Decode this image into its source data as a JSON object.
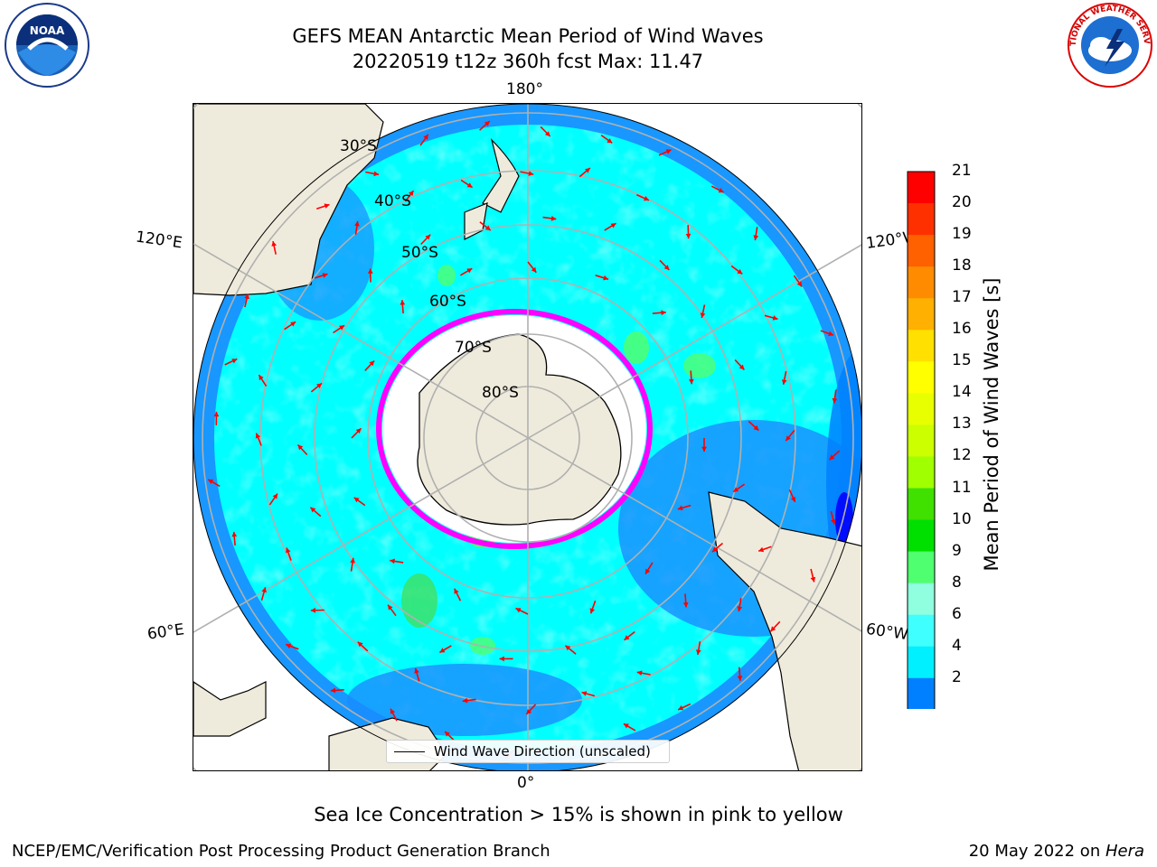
{
  "title": {
    "line1": "GEFS MEAN Antarctic Mean Period of Wind Waves",
    "line2": "20220519 t12z 360h fcst   Max: 11.47"
  },
  "map": {
    "projection": "south-polar-stereographic",
    "longitude_labels": {
      "top": "180°",
      "bottom": "0°",
      "upper_left": "120°E",
      "upper_right": "120°W",
      "lower_left": "60°E",
      "lower_right": "60°W"
    },
    "latitude_labels": [
      "30°S",
      "40°S",
      "50°S",
      "60°S",
      "70°S",
      "80°S"
    ],
    "legend_label": "Wind Wave Direction (unscaled)",
    "sea_ice_colors": [
      "#ff00ff",
      "#ff80ff",
      "#ffd700",
      "#ffff66"
    ],
    "land_color": "#efebdc",
    "ocean_base_color": "#00ffff",
    "arrow_color": "#ff0000"
  },
  "colorbar": {
    "title": "Mean Period of Wind Waves [s]",
    "ticks": [
      "21",
      "20",
      "19",
      "18",
      "17",
      "16",
      "15",
      "14",
      "13",
      "12",
      "11",
      "10",
      "9",
      "8",
      "6",
      "4",
      "2"
    ],
    "colors_top_to_bottom": [
      "#ff0000",
      "#ff3000",
      "#ff6000",
      "#ff8c00",
      "#ffb000",
      "#ffe000",
      "#ffff00",
      "#e8ff00",
      "#ccff00",
      "#a0ff00",
      "#40e000",
      "#00e000",
      "#50ff70",
      "#90ffe0",
      "#40ffff",
      "#00f0ff",
      "#0080ff"
    ],
    "under_color": "#0000ff"
  },
  "footer": {
    "note": "Sea Ice Concentration > 15% is shown in pink to yellow",
    "credit": "NCEP/EMC/Verification Post Processing Product Generation Branch",
    "date": "20 May 2022 on ",
    "host": "Hera"
  },
  "logos": {
    "left": "NOAA",
    "right": "NATIONAL WEATHER SERVICE"
  }
}
